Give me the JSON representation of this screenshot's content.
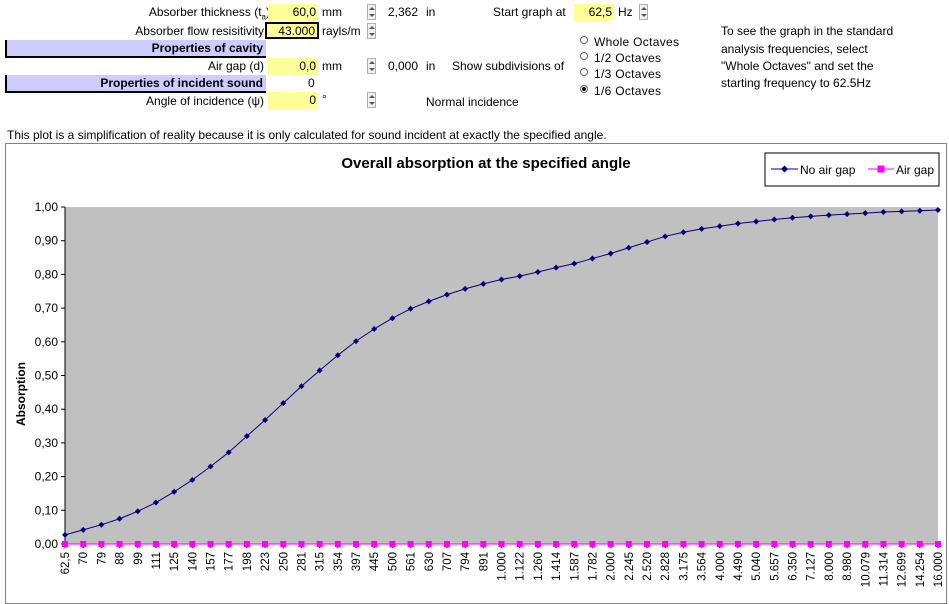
{
  "form": {
    "absorber_thickness": {
      "label": "Absorber thickness (t",
      "sub": "a",
      "close": ")",
      "value": "60,0",
      "unit": "mm",
      "converted": "2,362",
      "converted_unit": "in"
    },
    "flow_resistivity": {
      "label": "Absorber flow resisitivity",
      "value": "43.000",
      "unit": "rayls/m"
    },
    "cavity_section": "Properties of cavity",
    "air_gap": {
      "label": "Air gap (d)",
      "value": "0,0",
      "unit": "mm",
      "converted": "0,000",
      "converted_unit": "in"
    },
    "incident_section": "Properties of incident sound",
    "incident_value": "0",
    "angle": {
      "label": "Angle of incidence (ψ)",
      "value": "0",
      "unit": "°",
      "note": "Normal incidence"
    },
    "start_graph": {
      "label": "Start graph at",
      "value": "62,5",
      "unit": "Hz"
    },
    "subdivisions": {
      "label": "Show subdivisions of",
      "options": [
        "Whole Octaves",
        "1/2 Octaves",
        "1/3 Octaves",
        "1/6 Octaves"
      ],
      "selected": 3
    },
    "help_lines": [
      "To see the graph in the standard",
      "analysis frequencies, select",
      "\"Whole Octaves\" and set the",
      "starting frequency to 62.5Hz"
    ],
    "disclaimer": "This plot is a simplification of reality because it is only calculated for sound incident at exactly the specified angle."
  },
  "chart_data": {
    "type": "line",
    "title": "Overall absorption at the specified angle",
    "xlabel": "",
    "ylabel": "Absorption",
    "ylim": [
      0,
      1
    ],
    "yticks": [
      "0,00",
      "0,10",
      "0,20",
      "0,30",
      "0,40",
      "0,50",
      "0,60",
      "0,70",
      "0,80",
      "0,90",
      "1,00"
    ],
    "legend_position": "top-right",
    "plot_background": "#c0c0c0",
    "categories": [
      "62,5",
      "70",
      "79",
      "88",
      "99",
      "111",
      "125",
      "140",
      "157",
      "177",
      "198",
      "223",
      "250",
      "281",
      "315",
      "354",
      "397",
      "445",
      "500",
      "561",
      "630",
      "707",
      "794",
      "891",
      "1.000",
      "1.122",
      "1.260",
      "1.414",
      "1.587",
      "1.782",
      "2.000",
      "2.245",
      "2.520",
      "2.828",
      "3.175",
      "3.564",
      "4.000",
      "4.490",
      "5.040",
      "5.657",
      "6.350",
      "7.127",
      "8.000",
      "8.980",
      "10.079",
      "11.314",
      "12.699",
      "14.254",
      "16.000"
    ],
    "series": [
      {
        "name": "No air gap",
        "color": "#000080",
        "values": [
          0.027,
          0.042,
          0.057,
          0.075,
          0.097,
          0.123,
          0.155,
          0.19,
          0.23,
          0.272,
          0.32,
          0.368,
          0.418,
          0.468,
          0.515,
          0.56,
          0.602,
          0.638,
          0.67,
          0.698,
          0.72,
          0.74,
          0.757,
          0.772,
          0.785,
          0.795,
          0.807,
          0.82,
          0.832,
          0.847,
          0.862,
          0.879,
          0.896,
          0.913,
          0.925,
          0.935,
          0.943,
          0.951,
          0.957,
          0.963,
          0.968,
          0.972,
          0.976,
          0.979,
          0.982,
          0.985,
          0.987,
          0.989,
          0.991
        ]
      },
      {
        "name": "Air gap",
        "color": "#ff00ff",
        "values": [
          0,
          0,
          0,
          0,
          0,
          0,
          0,
          0,
          0,
          0,
          0,
          0,
          0,
          0,
          0,
          0,
          0,
          0,
          0,
          0,
          0,
          0,
          0,
          0,
          0,
          0,
          0,
          0,
          0,
          0,
          0,
          0,
          0,
          0,
          0,
          0,
          0,
          0,
          0,
          0,
          0,
          0,
          0,
          0,
          0,
          0,
          0,
          0,
          0
        ]
      }
    ]
  }
}
